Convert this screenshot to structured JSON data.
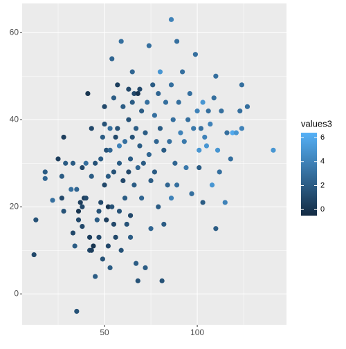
{
  "chart_data": {
    "type": "scatter",
    "legend_title": "values3",
    "xlim": [
      5.6,
      148.1
    ],
    "xticks": [
      50,
      100
    ],
    "ylim": [
      -7.1,
      66.7
    ],
    "yticks": [
      0,
      20,
      40,
      60
    ],
    "colorlim": [
      -0.5,
      6.4
    ],
    "colorticks": [
      0,
      2,
      4,
      6
    ],
    "low_color": "#132B43",
    "high_color": "#56B1F7",
    "grid": true,
    "x": [
      12,
      13,
      18,
      18,
      22,
      25,
      27,
      27,
      28,
      28,
      29,
      32,
      33,
      33,
      34,
      35,
      35,
      36,
      36,
      37,
      38,
      38,
      38,
      39,
      40,
      40,
      41,
      42,
      42,
      43,
      43,
      43,
      44,
      45,
      45,
      46,
      47,
      47,
      48,
      48,
      49,
      49,
      50,
      50,
      50,
      51,
      51,
      52,
      52,
      52,
      53,
      53,
      53,
      54,
      54,
      55,
      55,
      55,
      56,
      56,
      57,
      57,
      58,
      58,
      58,
      59,
      59,
      60,
      60,
      61,
      61,
      62,
      63,
      63,
      63,
      64,
      64,
      64,
      65,
      65,
      65,
      66,
      66,
      67,
      67,
      68,
      68,
      68,
      69,
      69,
      70,
      70,
      71,
      72,
      72,
      73,
      74,
      74,
      75,
      75,
      76,
      77,
      77,
      78,
      79,
      79,
      80,
      80,
      81,
      82,
      82,
      83,
      84,
      85,
      86,
      86,
      86,
      87,
      88,
      89,
      89,
      90,
      91,
      92,
      93,
      94,
      95,
      96,
      97,
      98,
      99,
      100,
      101,
      101,
      102,
      103,
      103,
      104,
      105,
      106,
      107,
      108,
      109,
      110,
      110,
      111,
      112,
      113,
      115,
      116,
      118,
      119,
      121,
      123,
      124,
      124,
      127,
      141
    ],
    "values": [
      9,
      17,
      28,
      26.5,
      21.5,
      31,
      22,
      27,
      36,
      19,
      30,
      24,
      30,
      14,
      11,
      -4,
      24,
      19,
      17,
      21,
      20,
      29,
      15.5,
      22,
      22,
      30,
      46,
      10,
      13,
      27,
      38,
      10,
      11,
      4,
      30,
      17,
      19,
      13,
      31,
      21,
      36,
      8,
      39,
      43,
      25,
      33,
      17,
      27,
      11,
      20,
      33,
      38,
      6,
      54,
      20,
      45,
      28,
      16,
      36,
      13,
      48,
      38,
      34,
      30,
      19,
      58,
      10,
      43,
      26,
      35,
      22,
      16,
      47,
      40,
      28,
      31,
      13,
      18,
      51,
      44,
      36,
      46,
      25,
      38,
      7,
      29,
      46,
      3,
      34,
      47,
      42,
      22,
      30,
      6,
      37,
      44,
      57,
      32,
      15,
      26,
      48,
      41,
      28,
      35,
      46,
      20,
      51,
      38,
      3,
      33,
      16,
      44,
      25,
      35,
      63,
      48,
      22,
      40,
      30,
      58,
      25,
      44,
      37,
      51,
      35,
      29,
      40,
      46,
      23,
      38,
      55,
      42,
      33,
      29,
      38,
      44,
      21,
      36,
      34,
      42,
      39,
      25,
      45,
      50,
      15,
      33,
      28,
      42,
      21,
      37,
      31,
      37,
      37,
      42,
      38,
      48,
      43,
      33
    ],
    "color_values": [
      1,
      1.5,
      2,
      2.5,
      3,
      0.5,
      1,
      2,
      0.5,
      1.5,
      2,
      3,
      2,
      1,
      2,
      1.5,
      2.5,
      0,
      1,
      0.5,
      1,
      1,
      1,
      0.5,
      1,
      3,
      0,
      1,
      0.5,
      2,
      1,
      0.5,
      0,
      2,
      1.5,
      2,
      1.5,
      1,
      2,
      1,
      2,
      1.5,
      1.5,
      1,
      1,
      1.5,
      0.5,
      2,
      1,
      0,
      2.5,
      3,
      2,
      2.5,
      1.5,
      2,
      1.5,
      1,
      1,
      1,
      0.5,
      1.5,
      4,
      2,
      1.5,
      3,
      1.5,
      2,
      1,
      3,
      2,
      1.5,
      1,
      1.5,
      1,
      2,
      2,
      1,
      2.5,
      2,
      1.5,
      1,
      2,
      2,
      2,
      2.5,
      0,
      1.5,
      2,
      1,
      2,
      2.5,
      2,
      2,
      2,
      3,
      3,
      2.5,
      2.5,
      2,
      2,
      3,
      2,
      2.5,
      2.5,
      2,
      5,
      2,
      1.5,
      2,
      2,
      3,
      2.5,
      3,
      4,
      3,
      4,
      3,
      2.5,
      3,
      3,
      3,
      4,
      3,
      3.5,
      3.5,
      3,
      3,
      3,
      3.5,
      3,
      4,
      5,
      2,
      3,
      5,
      2,
      4,
      5,
      3,
      4,
      5,
      3,
      3,
      2,
      5,
      3,
      3,
      4,
      3,
      3,
      6,
      5,
      3,
      4,
      3,
      3,
      5
    ]
  }
}
